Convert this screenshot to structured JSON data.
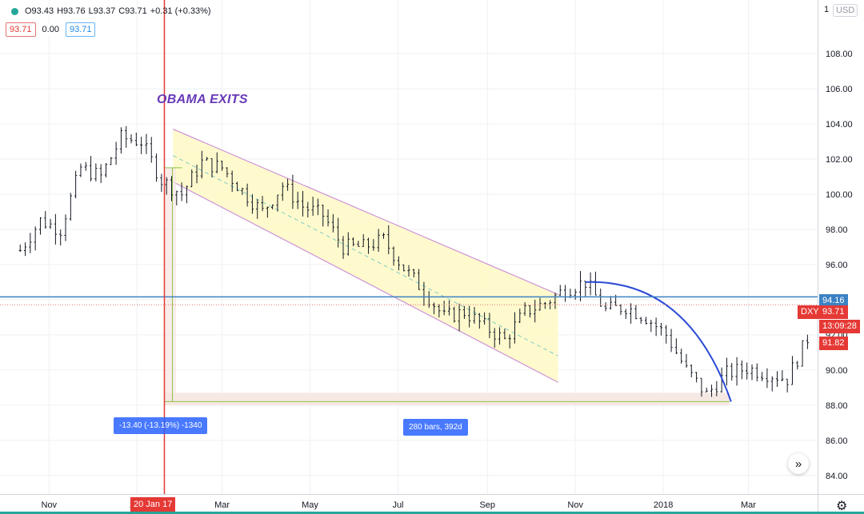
{
  "header": {
    "open": "O93.43",
    "high": "H93.76",
    "low": "L93.37",
    "close": "C93.71",
    "change": "+0.31 (+0.33%)",
    "box_sell": "93.71",
    "box_spread": "0.00",
    "box_buy": "93.71",
    "currency": "USD",
    "currency_top": "1"
  },
  "annotation": "OBAMA EXITS",
  "vertical_marker_label": "20 Jan 17",
  "measure_price_label": "-13.40 (-13.19%) -1340",
  "measure_bars_label": "280 bars, 392d",
  "price_tags": {
    "horizontal_line": "94.16",
    "symbol": "DXY",
    "last_price": "93.71",
    "countdown": "13:09:28",
    "last_bar": "91.82"
  },
  "colors": {
    "candle": "#131722",
    "channel_fill": "#fff9c4",
    "channel_edge": "#ce93d8",
    "arc": "#2c4bd6",
    "hline": "#3b82c4",
    "vline": "#e53935",
    "measure_fill": "#f5e6e0",
    "grid": "#eef0f3"
  },
  "chart_data": {
    "type": "line",
    "symbol": "DXY",
    "x_tick_labels": [
      "Nov",
      "201",
      "Mar",
      "May",
      "Jul",
      "Sep",
      "Nov",
      "2018",
      "Mar"
    ],
    "y_tick_labels": [
      "84.00",
      "86.00",
      "88.00",
      "90.00",
      "92.00",
      "94.00",
      "96.00",
      "98.00",
      "100.00",
      "102.00",
      "104.00",
      "106.00",
      "108.00"
    ],
    "ylim": [
      83.4,
      110.5
    ],
    "x": [
      "2016-10-12",
      "2016-10-26",
      "2016-11-09",
      "2016-11-23",
      "2016-12-07",
      "2016-12-21",
      "2017-01-04",
      "2017-01-18",
      "2017-02-01",
      "2017-02-15",
      "2017-03-01",
      "2017-03-15",
      "2017-03-29",
      "2017-04-12",
      "2017-04-26",
      "2017-05-10",
      "2017-05-24",
      "2017-06-07",
      "2017-06-21",
      "2017-07-05",
      "2017-07-19",
      "2017-08-02",
      "2017-08-16",
      "2017-08-30",
      "2017-09-13",
      "2017-09-27",
      "2017-10-11",
      "2017-10-25",
      "2017-11-08",
      "2017-11-22",
      "2017-12-06",
      "2017-12-20",
      "2018-01-03",
      "2018-01-17",
      "2018-01-31",
      "2018-02-14",
      "2018-02-28",
      "2018-03-14",
      "2018-03-28",
      "2018-04-11"
    ],
    "series": [
      {
        "values": [
          96.8,
          98.5,
          98.0,
          101.5,
          101.0,
          103.2,
          103.0,
          100.8,
          100.0,
          101.8,
          101.5,
          100.2,
          99.0,
          100.5,
          99.3,
          98.8,
          97.0,
          97.0,
          97.4,
          95.8,
          94.5,
          93.0,
          93.3,
          92.5,
          91.7,
          93.3,
          93.8,
          94.6,
          95.0,
          93.4,
          93.6,
          93.0,
          92.0,
          90.0,
          88.6,
          89.8,
          90.1,
          89.8,
          89.5,
          91.8
        ]
      }
    ],
    "horizontal_line": 94.16,
    "vertical_marker": "2017-01-20",
    "measure": {
      "price_change": -13.4,
      "percent_change": -13.19,
      "bars": 280,
      "days": 392
    }
  }
}
